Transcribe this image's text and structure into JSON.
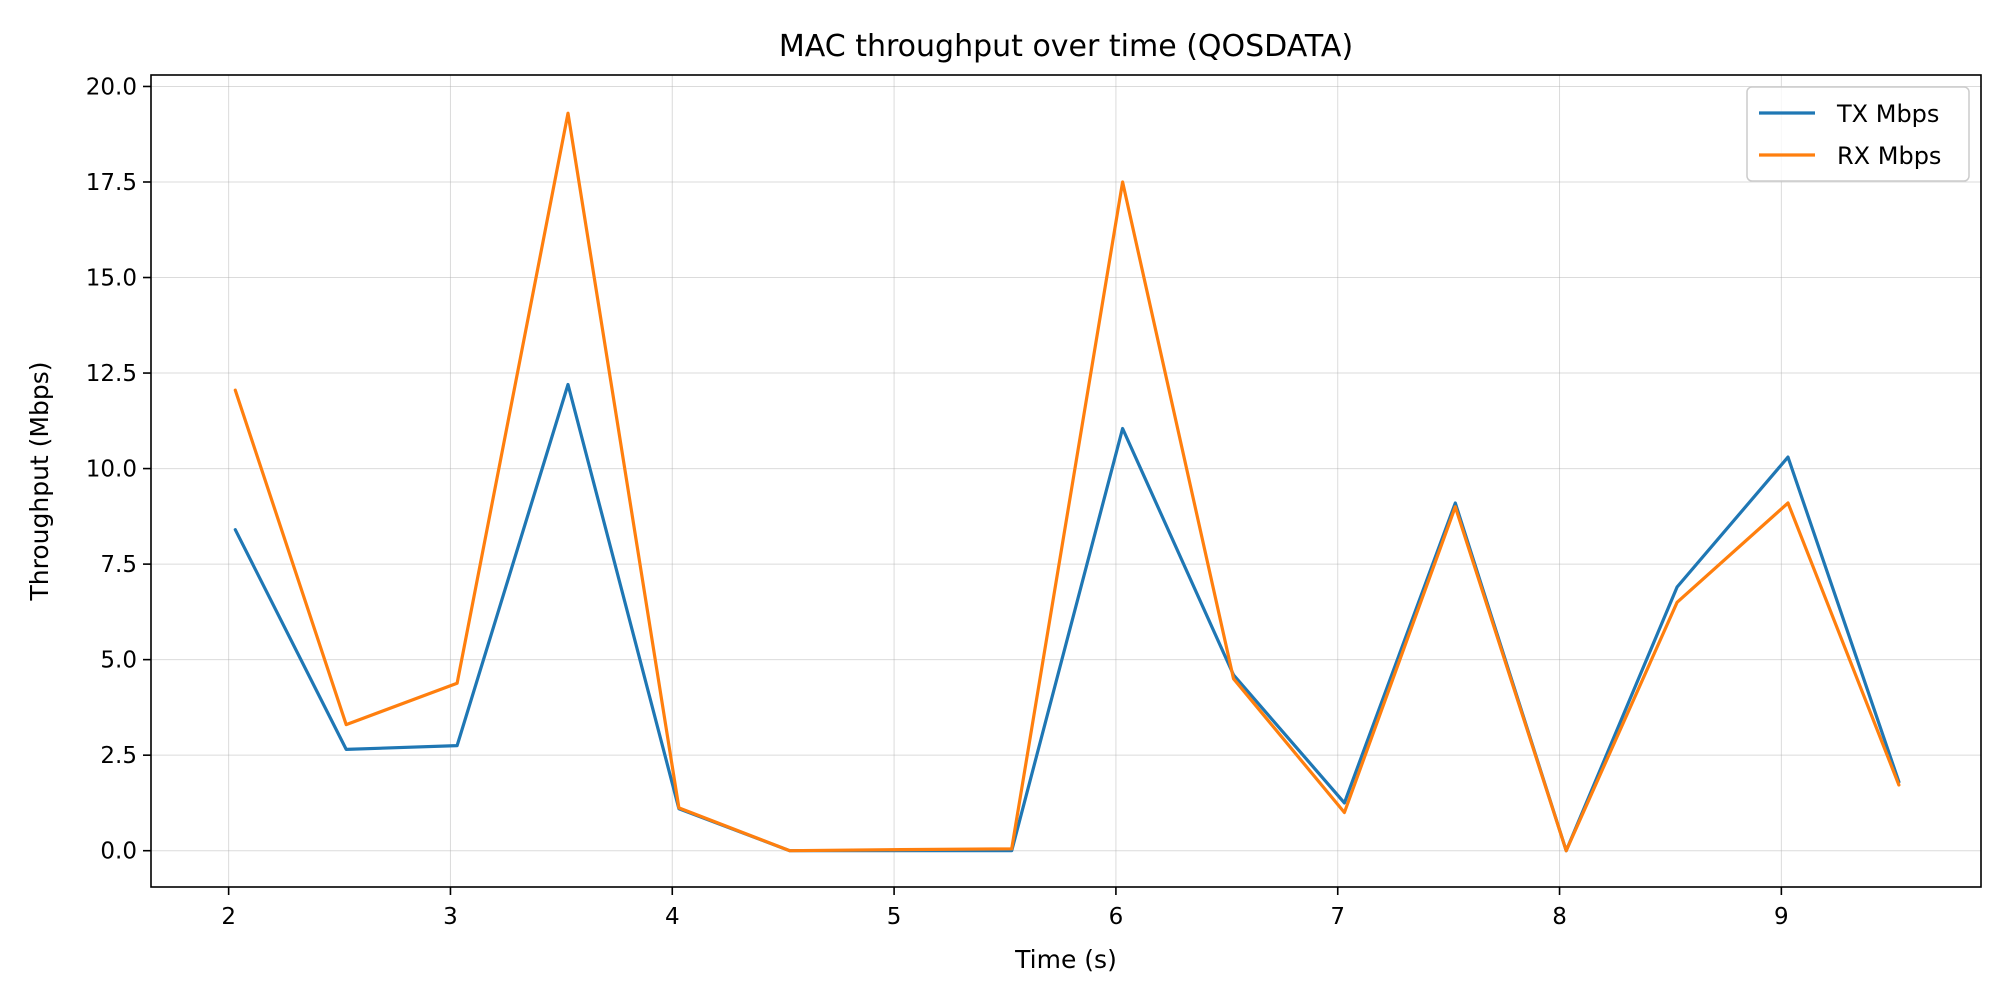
{
  "chart_data": {
    "type": "line",
    "title": "MAC throughput over time (QOSDATA)",
    "xlabel": "Time (s)",
    "ylabel": "Throughput (Mbps)",
    "xlim": [
      1.65,
      9.9
    ],
    "ylim": [
      -0.95,
      20.3
    ],
    "xticks": [
      2,
      3,
      4,
      5,
      6,
      7,
      8,
      9
    ],
    "yticks": [
      0.0,
      2.5,
      5.0,
      7.5,
      10.0,
      12.5,
      15.0,
      17.5,
      20.0
    ],
    "xtick_labels": [
      "2",
      "3",
      "4",
      "5",
      "6",
      "7",
      "8",
      "9"
    ],
    "ytick_labels": [
      "0.0",
      "2.5",
      "5.0",
      "7.5",
      "10.0",
      "12.5",
      "15.0",
      "17.5",
      "20.0"
    ],
    "grid": true,
    "legend_position": "top-right",
    "x": [
      2.03,
      2.53,
      3.03,
      3.53,
      4.03,
      4.53,
      5.03,
      5.53,
      6.03,
      6.53,
      7.03,
      7.53,
      8.03,
      8.53,
      9.03,
      9.53
    ],
    "series": [
      {
        "name": "TX Mbps",
        "color": "#1f77b4",
        "values": [
          8.4,
          2.65,
          2.75,
          12.2,
          1.1,
          0.0,
          0.0,
          0.0,
          11.05,
          4.6,
          1.25,
          9.1,
          0.0,
          6.9,
          10.3,
          1.8
        ]
      },
      {
        "name": "RX Mbps",
        "color": "#ff7f0e",
        "values": [
          12.05,
          3.3,
          4.38,
          19.3,
          1.12,
          0.0,
          0.03,
          0.05,
          17.5,
          4.5,
          1.0,
          9.0,
          0.0,
          6.5,
          9.1,
          1.72
        ]
      }
    ]
  }
}
